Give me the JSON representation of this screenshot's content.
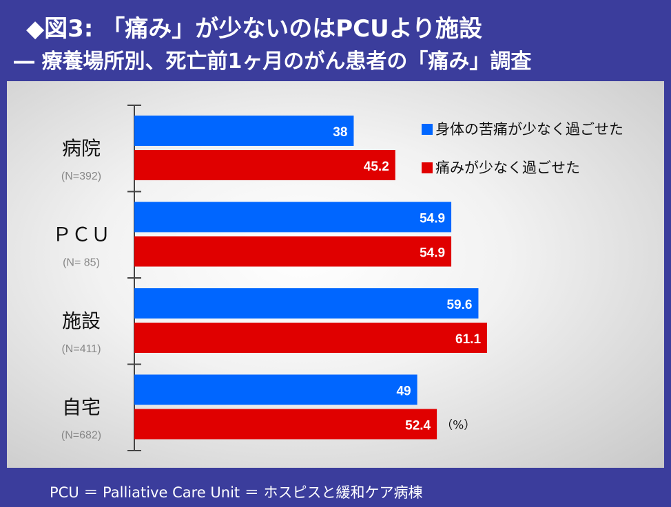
{
  "title": "◆図3: 「痛み」が少ないのはPCUより施設",
  "subtitle": "― 療養場所別、死亡前1ヶ月のがん患者の「痛み」調査",
  "footnote": "PCU ＝ Palliative Care Unit ＝ ホスピスと緩和ケア病棟",
  "chart_data": {
    "type": "bar",
    "orientation": "horizontal",
    "categories": [
      "病院",
      "ＰＣＵ",
      "施設",
      "自宅"
    ],
    "category_notes": [
      "(N=392)",
      "(N= 85)",
      "(N=411)",
      "(N=682)"
    ],
    "series": [
      {
        "name": "身体の苦痛が少なく過ごせた",
        "color": "#0066ff",
        "values": [
          38,
          54.9,
          59.6,
          49
        ]
      },
      {
        "name": "痛みが少なく過ごせた",
        "color": "#e00000",
        "values": [
          45.2,
          54.9,
          61.1,
          52.4
        ]
      }
    ],
    "unit_label": "（%）",
    "xlim": [
      0,
      100
    ],
    "grid": false,
    "legend": "top-right",
    "data_labels": true
  }
}
